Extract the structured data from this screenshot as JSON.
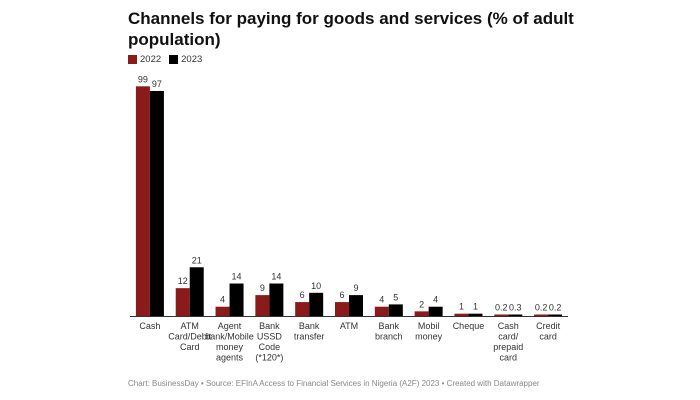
{
  "chart_data": {
    "type": "bar",
    "title": "Channels for paying for goods and services (% of adult population)",
    "categories": [
      [
        "Cash"
      ],
      [
        "ATM",
        "Card/Debit",
        "Card"
      ],
      [
        "Agent",
        "bank/Mobile",
        "money",
        "agents"
      ],
      [
        "Bank",
        "USSD",
        "Code",
        "(*120*)"
      ],
      [
        "Bank",
        "transfer"
      ],
      [
        "ATM"
      ],
      [
        "Bank",
        "branch"
      ],
      [
        "Mobil",
        "money"
      ],
      [
        "Cheque"
      ],
      [
        "Cash",
        "card/",
        "prepaid",
        "card"
      ],
      [
        "Credit",
        "card"
      ]
    ],
    "series": [
      {
        "name": "2022",
        "color": "#8b1a1a",
        "values": [
          99,
          12,
          4,
          9,
          6,
          6,
          4,
          2,
          1,
          0.2,
          0.2
        ]
      },
      {
        "name": "2023",
        "color": "#000000",
        "values": [
          97,
          21,
          14,
          14,
          10,
          9,
          5,
          4,
          1,
          0.3,
          0.2
        ]
      }
    ],
    "ylim": [
      0,
      100
    ],
    "xlabel": "",
    "ylabel": ""
  },
  "footer": {
    "text": "Chart: BusinessDay • Source: EFInA Access to Financial Services in Nigeria (A2F) 2023 • Created with Datawrapper"
  }
}
